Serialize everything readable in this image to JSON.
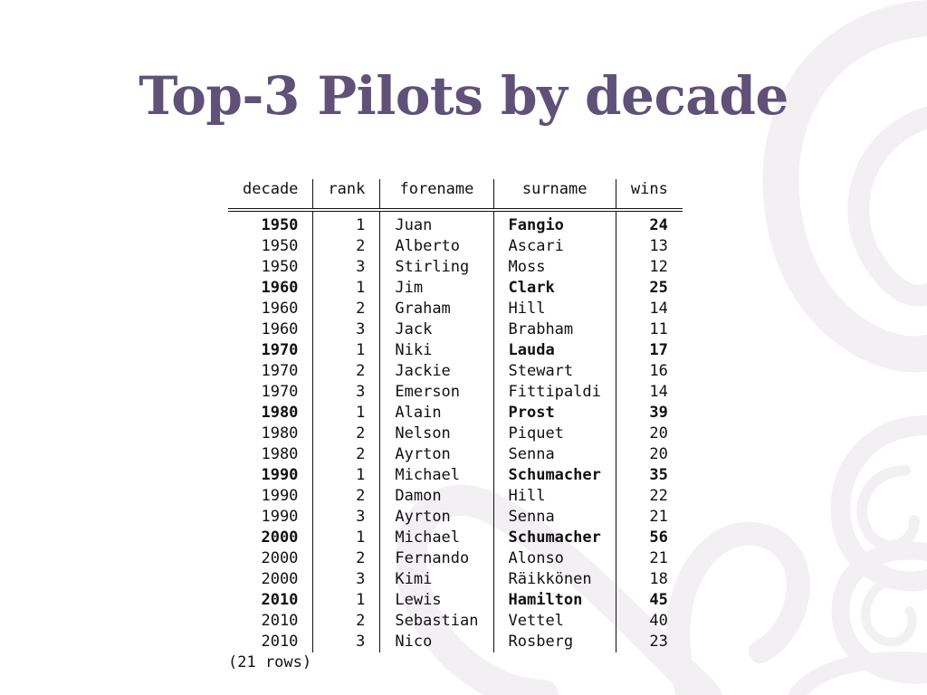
{
  "slide": {
    "title": "Top-3 Pilots by decade"
  },
  "table": {
    "columns": [
      "decade",
      "rank",
      "forename",
      "surname",
      "wins"
    ],
    "rows": [
      [
        "1950",
        "1",
        "Juan",
        "Fangio",
        "24"
      ],
      [
        "1950",
        "2",
        "Alberto",
        "Ascari",
        "13"
      ],
      [
        "1950",
        "3",
        "Stirling",
        "Moss",
        "12"
      ],
      [
        "1960",
        "1",
        "Jim",
        "Clark",
        "25"
      ],
      [
        "1960",
        "2",
        "Graham",
        "Hill",
        "14"
      ],
      [
        "1960",
        "3",
        "Jack",
        "Brabham",
        "11"
      ],
      [
        "1970",
        "1",
        "Niki",
        "Lauda",
        "17"
      ],
      [
        "1970",
        "2",
        "Jackie",
        "Stewart",
        "16"
      ],
      [
        "1970",
        "3",
        "Emerson",
        "Fittipaldi",
        "14"
      ],
      [
        "1980",
        "1",
        "Alain",
        "Prost",
        "39"
      ],
      [
        "1980",
        "2",
        "Nelson",
        "Piquet",
        "20"
      ],
      [
        "1980",
        "2",
        "Ayrton",
        "Senna",
        "20"
      ],
      [
        "1990",
        "1",
        "Michael",
        "Schumacher",
        "35"
      ],
      [
        "1990",
        "2",
        "Damon",
        "Hill",
        "22"
      ],
      [
        "1990",
        "3",
        "Ayrton",
        "Senna",
        "21"
      ],
      [
        "2000",
        "1",
        "Michael",
        "Schumacher",
        "56"
      ],
      [
        "2000",
        "2",
        "Fernando",
        "Alonso",
        "21"
      ],
      [
        "2000",
        "3",
        "Kimi",
        "Räikkönen",
        "18"
      ],
      [
        "2010",
        "1",
        "Lewis",
        "Hamilton",
        "45"
      ],
      [
        "2010",
        "2",
        "Sebastian",
        "Vettel",
        "40"
      ],
      [
        "2010",
        "3",
        "Nico",
        "Rosberg",
        "23"
      ]
    ],
    "footer": "(21 rows)"
  },
  "colors": {
    "title": "#5f5178",
    "text": "#111111",
    "decoration": "#f2f0f3"
  }
}
